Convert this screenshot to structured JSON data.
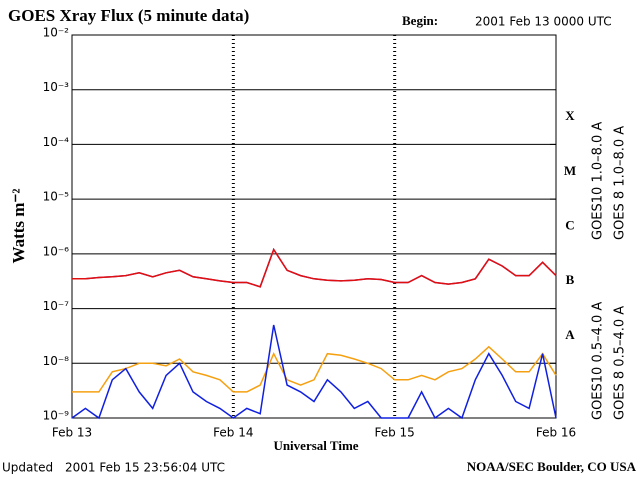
{
  "chart_data": {
    "type": "line",
    "title": "GOES Xray Flux (5 minute data)",
    "begin_label": "Begin:",
    "begin": "2001 Feb 13 0000 UTC",
    "ylabel": "Watts m⁻²",
    "xlabel": "Universal Time",
    "updated_label": "Updated",
    "updated": "2001 Feb 15 23:56:04 UTC",
    "credit": "NOAA/SEC Boulder, CO USA",
    "log_scale": true,
    "grid": true,
    "xlim": [
      0,
      72
    ],
    "xticks": [
      {
        "value": 0,
        "label": "Feb 13"
      },
      {
        "value": 24,
        "label": "Feb 14"
      },
      {
        "value": 48,
        "label": "Feb 15"
      },
      {
        "value": 72,
        "label": "Feb 16"
      }
    ],
    "ylim": [
      1e-09,
      0.01
    ],
    "yticks": [
      {
        "value": 1e-09,
        "label": "10⁻⁹"
      },
      {
        "value": 1e-08,
        "label": "10⁻⁸"
      },
      {
        "value": 1e-07,
        "label": "10⁻⁷"
      },
      {
        "value": 1e-06,
        "label": "10⁻⁶"
      },
      {
        "value": 1e-05,
        "label": "10⁻⁵"
      },
      {
        "value": 0.0001,
        "label": "10⁻⁴"
      },
      {
        "value": 0.001,
        "label": "10⁻³"
      },
      {
        "value": 0.01,
        "label": "10⁻²"
      }
    ],
    "classes": [
      {
        "label": "A",
        "value": 1e-08
      },
      {
        "label": "B",
        "value": 1e-07
      },
      {
        "label": "C",
        "value": 1e-06
      },
      {
        "label": "M",
        "value": 1e-05
      },
      {
        "label": "X",
        "value": 0.0001
      }
    ],
    "x": [
      0,
      2,
      4,
      6,
      8,
      10,
      12,
      14,
      16,
      18,
      20,
      22,
      24,
      26,
      28,
      30,
      32,
      34,
      36,
      38,
      40,
      42,
      44,
      46,
      48,
      50,
      52,
      54,
      56,
      58,
      60,
      62,
      64,
      66,
      68,
      70,
      72
    ],
    "series": [
      {
        "name": "GOES10 1.0–8.0 A",
        "color": "#8b2fa8",
        "legend_group": "long",
        "values": [
          3.5e-07,
          3.5e-07,
          3.7e-07,
          3.8e-07,
          4e-07,
          4.5e-07,
          3.8e-07,
          4.5e-07,
          5e-07,
          3.8e-07,
          3.5e-07,
          3.2e-07,
          3e-07,
          3e-07,
          2.5e-07,
          1.2e-06,
          5e-07,
          4e-07,
          3.5e-07,
          3.3e-07,
          3.2e-07,
          3.3e-07,
          3.5e-07,
          3.4e-07,
          3e-07,
          3e-07,
          4e-07,
          3e-07,
          2.8e-07,
          3e-07,
          3.5e-07,
          8e-07,
          6e-07,
          4e-07,
          4e-07,
          7e-07,
          4e-07
        ]
      },
      {
        "name": "GOES 8 1.0–8.0 A",
        "color": "#e01010",
        "legend_group": "long",
        "values": [
          3.5e-07,
          3.5e-07,
          3.7e-07,
          3.8e-07,
          4e-07,
          4.5e-07,
          3.8e-07,
          4.5e-07,
          5e-07,
          3.8e-07,
          3.5e-07,
          3.2e-07,
          3e-07,
          3e-07,
          2.5e-07,
          1.2e-06,
          5e-07,
          4e-07,
          3.5e-07,
          3.3e-07,
          3.2e-07,
          3.3e-07,
          3.5e-07,
          3.4e-07,
          3e-07,
          3e-07,
          4e-07,
          3e-07,
          2.8e-07,
          3e-07,
          3.5e-07,
          8e-07,
          6e-07,
          4e-07,
          4e-07,
          7e-07,
          4e-07
        ]
      },
      {
        "name": "GOES10 0.5–4.0 A",
        "color": "#f5a010",
        "legend_group": "short",
        "values": [
          3e-09,
          3e-09,
          3e-09,
          7e-09,
          8e-09,
          1e-08,
          1e-08,
          9e-09,
          1.2e-08,
          7e-09,
          6e-09,
          5e-09,
          3e-09,
          3e-09,
          4e-09,
          1.5e-08,
          5e-09,
          4e-09,
          5e-09,
          1.5e-08,
          1.4e-08,
          1.2e-08,
          1e-08,
          8e-09,
          5e-09,
          5e-09,
          6e-09,
          5e-09,
          7e-09,
          8e-09,
          1.2e-08,
          2e-08,
          1.2e-08,
          7e-09,
          7e-09,
          1.5e-08,
          6e-09
        ]
      },
      {
        "name": "GOES 8 0.5–4.0 A",
        "color": "#1020e0",
        "legend_group": "short",
        "values": [
          1e-09,
          1.5e-09,
          1e-09,
          5e-09,
          8e-09,
          3e-09,
          1.5e-09,
          6e-09,
          1e-08,
          3e-09,
          2e-09,
          1.5e-09,
          1e-09,
          1.5e-09,
          1.2e-09,
          5e-08,
          4e-09,
          3e-09,
          2e-09,
          5e-09,
          3e-09,
          1.5e-09,
          2e-09,
          1e-09,
          1e-09,
          1e-09,
          3e-09,
          1e-09,
          1.5e-09,
          1e-09,
          5e-09,
          1.5e-08,
          6e-09,
          2e-09,
          1.5e-09,
          1.5e-08,
          1e-09
        ]
      }
    ]
  }
}
